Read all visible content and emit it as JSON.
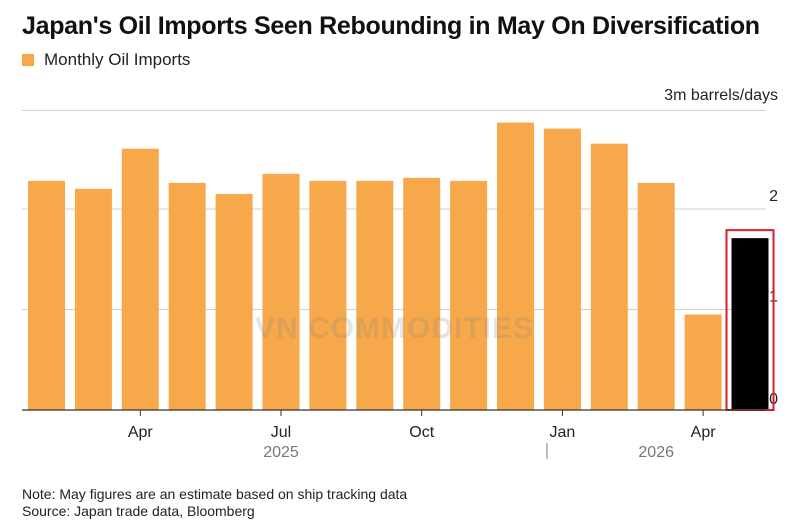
{
  "chart_data": {
    "type": "bar",
    "title": "Japan's Oil Imports Seen Rebounding in May On Diversification",
    "legend": [
      "Monthly Oil Imports"
    ],
    "unit_label": "3m barrels/days",
    "categories": [
      "2025-02",
      "2025-03",
      "2025-04",
      "2025-05",
      "2025-06",
      "2025-07",
      "2025-08",
      "2025-09",
      "2025-10",
      "2025-11",
      "2025-12",
      "2026-01",
      "2026-02",
      "2026-03",
      "2026-04",
      "2026-05"
    ],
    "x_tick_labels": [
      {
        "label": "Apr",
        "category": "2025-04"
      },
      {
        "label": "Jul",
        "category": "2025-07"
      },
      {
        "label": "Oct",
        "category": "2025-10"
      },
      {
        "label": "Jan",
        "category": "2026-01"
      },
      {
        "label": "Apr",
        "category": "2026-04"
      }
    ],
    "year_labels": [
      {
        "label": "2025",
        "category": "2025-07"
      },
      {
        "label": "2026",
        "category": "2026-03"
      }
    ],
    "series": [
      {
        "name": "Monthly Oil Imports",
        "values": [
          2.28,
          2.2,
          2.6,
          2.26,
          2.15,
          2.35,
          2.28,
          2.28,
          2.31,
          2.28,
          2.86,
          2.8,
          2.65,
          2.26,
          0.95,
          1.71
        ]
      }
    ],
    "highlight": {
      "category": "2026-05",
      "color": "#000000",
      "box_color": "#d81f26"
    },
    "ylim": [
      0,
      3
    ],
    "y_ticks": [
      0,
      1,
      2
    ],
    "grid": true,
    "legend_position": "top-left",
    "colors": {
      "bar": "#f6a84b",
      "estimate_bar": "#000000",
      "highlight_box": "#d81f26",
      "grid": "#cfcfcf"
    }
  },
  "watermark": "VN COMMODITIES",
  "notes": {
    "note": "Note: May figures are an estimate based on ship tracking data",
    "source": "Source: Japan trade data, Bloomberg"
  }
}
